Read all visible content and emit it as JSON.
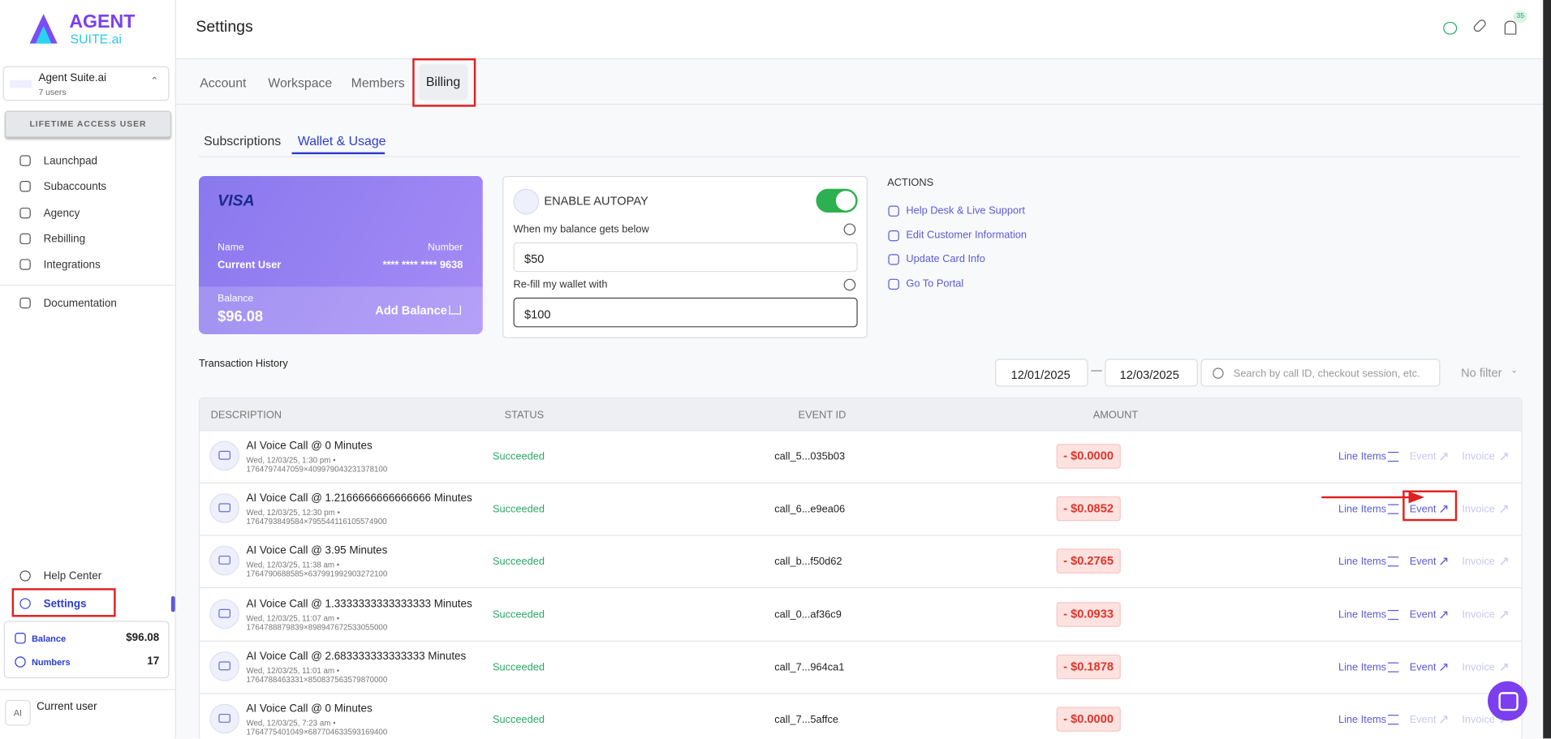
{
  "sidebar": {
    "logo_top": "AGENT",
    "logo_bottom": "SUITE.ai",
    "workspace": {
      "name": "Agent Suite.ai",
      "users": "7 users"
    },
    "badge": "LIFETIME ACCESS USER",
    "nav": [
      "Launchpad",
      "Subaccounts",
      "Agency",
      "Rebilling",
      "Integrations"
    ],
    "documentation": "Documentation",
    "help": "Help Center",
    "settings": "Settings",
    "balance": {
      "label": "Balance",
      "value": "$96.08"
    },
    "numbers": {
      "label": "Numbers",
      "value": "17"
    },
    "user": {
      "avatar": "AI",
      "name": "Current user"
    }
  },
  "header": {
    "title": "Settings",
    "notifications": "35"
  },
  "tabs": [
    "Account",
    "Workspace",
    "Members",
    "Billing"
  ],
  "subtabs": [
    "Subscriptions",
    "Wallet & Usage"
  ],
  "card": {
    "brand": "VISA",
    "name_label": "Name",
    "name": "Current User",
    "number_label": "Number",
    "number": "**** **** **** 9638",
    "balance_label": "Balance",
    "balance": "$96.08",
    "add_balance": "Add Balance"
  },
  "autopay": {
    "title": "ENABLE AUTOPAY",
    "below_label": "When my balance gets below",
    "below_value": "$50",
    "refill_label": "Re-fill my wallet with",
    "refill_value": "$100"
  },
  "actions": {
    "title": "ACTIONS",
    "items": [
      "Help Desk & Live Support",
      "Edit Customer Information",
      "Update Card Info",
      "Go To Portal"
    ]
  },
  "transactions": {
    "title": "Transaction History",
    "date_from": "12/01/2025",
    "date_separator": "—",
    "date_to": "12/03/2025",
    "search_placeholder": "Search by call ID, checkout session, etc.",
    "filter": "No filter",
    "columns": [
      "DESCRIPTION",
      "STATUS",
      "EVENT ID",
      "AMOUNT"
    ],
    "rows": [
      {
        "description": "AI Voice Call @ 0 Minutes",
        "meta": "Wed, 12/03/25, 1:30 pm •",
        "ref": "1764797447059×409979043231378100",
        "status": "Succeeded",
        "event_id": "call_5...035b03",
        "amount": "- $0.0000",
        "line_items": "Line Items",
        "event": "Event",
        "event_active": false,
        "invoice": "Invoice"
      },
      {
        "description": "AI Voice Call @ 1.2166666666666666 Minutes",
        "meta": "Wed, 12/03/25, 12:30 pm •",
        "ref": "1764793849584×795544116105574900",
        "status": "Succeeded",
        "event_id": "call_6...e9ea06",
        "amount": "- $0.0852",
        "line_items": "Line Items",
        "event": "Event",
        "event_active": true,
        "invoice": "Invoice"
      },
      {
        "description": "AI Voice Call @ 3.95 Minutes",
        "meta": "Wed, 12/03/25, 11:38 am •",
        "ref": "1764790688585×637991992903272100",
        "status": "Succeeded",
        "event_id": "call_b...f50d62",
        "amount": "- $0.2765",
        "line_items": "Line Items",
        "event": "Event",
        "event_active": true,
        "invoice": "Invoice"
      },
      {
        "description": "AI Voice Call @ 1.3333333333333333 Minutes",
        "meta": "Wed, 12/03/25, 11:07 am •",
        "ref": "1764788879839×898947672533055000",
        "status": "Succeeded",
        "event_id": "call_0...af36c9",
        "amount": "- $0.0933",
        "line_items": "Line Items",
        "event": "Event",
        "event_active": true,
        "invoice": "Invoice"
      },
      {
        "description": "AI Voice Call @ 2.683333333333333 Minutes",
        "meta": "Wed, 12/03/25, 11:01 am •",
        "ref": "1764788463331×850837563579870000",
        "status": "Succeeded",
        "event_id": "call_7...964ca1",
        "amount": "- $0.1878",
        "line_items": "Line Items",
        "event": "Event",
        "event_active": true,
        "invoice": "Invoice"
      },
      {
        "description": "AI Voice Call @ 0 Minutes",
        "meta": "Wed, 12/03/25, 7:23 am •",
        "ref": "1764775401049×687704633593169400",
        "status": "Succeeded",
        "event_id": "call_7...5affce",
        "amount": "- $0.0000",
        "line_items": "Line Items",
        "event": "Event",
        "event_active": false,
        "invoice": "Invoice"
      }
    ]
  }
}
